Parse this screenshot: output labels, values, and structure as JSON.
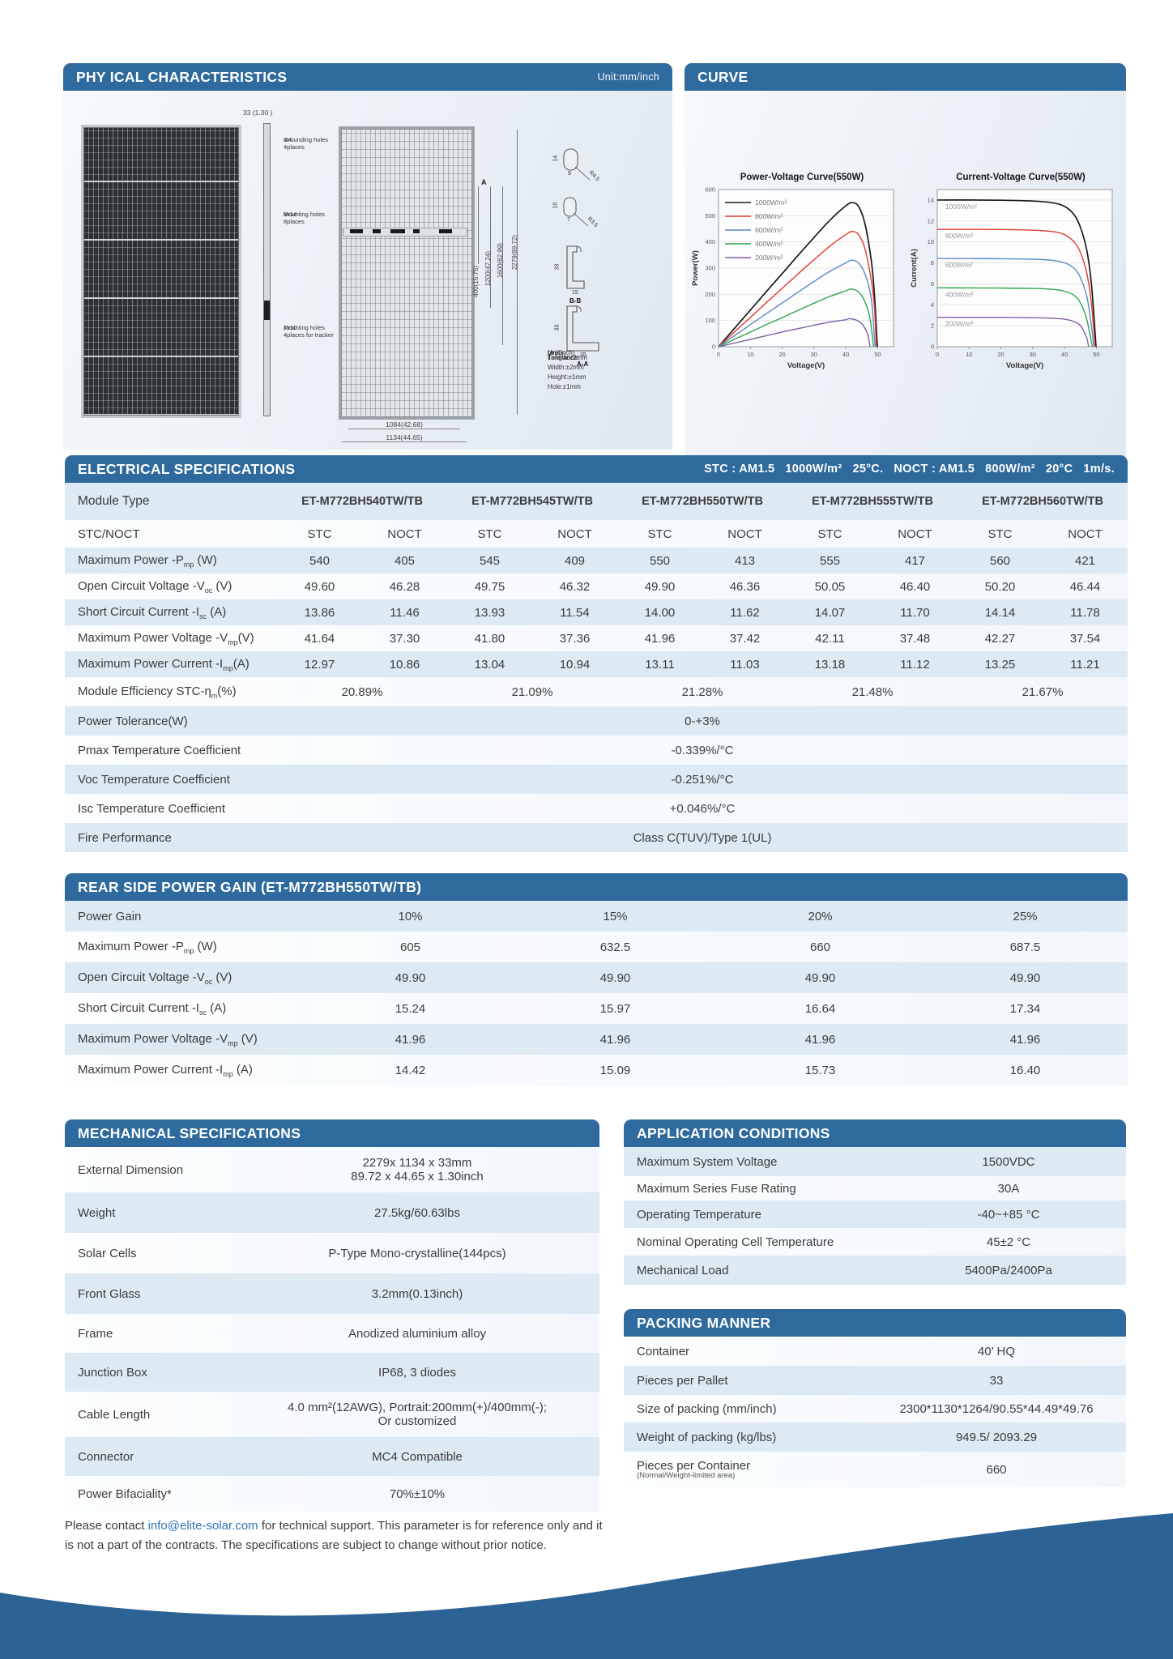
{
  "physical": {
    "title": "PHY ICAL CHARACTERISTICS",
    "unit_badge": "Unit:mm/inch",
    "dim_thickness": "33 (1.30 )",
    "grounding_l1": "Φ4",
    "grounding_l2": "Grounding holes",
    "grounding_l3": "4places",
    "mounting_l1": "9x14",
    "mounting_l2": "Mounting holes",
    "mounting_l3": "8places",
    "tracker_l1": "7x10",
    "tracker_l2": "Mounting holes",
    "tracker_l3": "4places for tracker",
    "dims_vertical": [
      "400(15.75)",
      "1200(47.24)",
      "1600(62.99)",
      "2279(89.72)"
    ],
    "a_mark": "A",
    "dim_width_inner": "1084(42.68)",
    "dim_width_outer": "1134(44.65)",
    "cs1_h": "14",
    "cs1_w": "9",
    "cs1_r": "R4.5",
    "cs2_h": "10",
    "cs2_w": "7",
    "cs2_r": "R3.5",
    "cs3_h": "33",
    "cs3_w": "15",
    "cs3_name": "B-B",
    "cs4_h": "33",
    "cs4_w": "35",
    "cs4_name": "A-A",
    "units_label": "Units:",
    "units_value": "mm(inch)",
    "tolerance_title": "Tolerance:",
    "tolerances": [
      "Length:±2mm",
      "Width:±2mm",
      "Height:±1mm",
      "Hole:±1mm"
    ]
  },
  "curve": {
    "title": "CURVE"
  },
  "chart_data": [
    {
      "type": "line",
      "title": "Power-Voltage Curve(550W)",
      "xlabel": "Voltage(V)",
      "ylabel": "Power(W)",
      "xlim": [
        0,
        55
      ],
      "ylim": [
        0,
        600
      ],
      "xticks": [
        0,
        10,
        20,
        30,
        40,
        50
      ],
      "yticks": [
        0,
        100,
        200,
        300,
        400,
        500,
        600
      ],
      "grid": true,
      "legend_position": "top-left",
      "series": [
        {
          "name": "1000W/m²",
          "color": "#1a1a1a",
          "points": [
            [
              0,
              0
            ],
            [
              5,
              70
            ],
            [
              10,
              140
            ],
            [
              15,
              210
            ],
            [
              20,
              279
            ],
            [
              25,
              349
            ],
            [
              30,
              417
            ],
            [
              35,
              483
            ],
            [
              40,
              538
            ],
            [
              42,
              550
            ],
            [
              44,
              536
            ],
            [
              46,
              470
            ],
            [
              48,
              330
            ],
            [
              49,
              200
            ],
            [
              49.9,
              0
            ]
          ]
        },
        {
          "name": "800W/m²",
          "color": "#e23b2e",
          "points": [
            [
              0,
              0
            ],
            [
              5,
              56
            ],
            [
              10,
              112
            ],
            [
              15,
              168
            ],
            [
              20,
              223
            ],
            [
              25,
              278
            ],
            [
              30,
              332
            ],
            [
              35,
              384
            ],
            [
              40,
              428
            ],
            [
              42,
              440
            ],
            [
              44,
              428
            ],
            [
              46,
              375
            ],
            [
              48,
              255
            ],
            [
              49,
              150
            ],
            [
              49.6,
              0
            ]
          ]
        },
        {
          "name": "600W/m²",
          "color": "#5b8ac5",
          "points": [
            [
              0,
              0
            ],
            [
              5,
              42
            ],
            [
              10,
              84
            ],
            [
              15,
              126
            ],
            [
              20,
              167
            ],
            [
              25,
              208
            ],
            [
              30,
              249
            ],
            [
              35,
              288
            ],
            [
              40,
              320
            ],
            [
              41.8,
              330
            ],
            [
              44,
              320
            ],
            [
              46,
              278
            ],
            [
              48,
              185
            ],
            [
              49.2,
              0
            ]
          ]
        },
        {
          "name": "400W/m²",
          "color": "#2ea44f",
          "points": [
            [
              0,
              0
            ],
            [
              5,
              28
            ],
            [
              10,
              56
            ],
            [
              15,
              84
            ],
            [
              20,
              111
            ],
            [
              25,
              139
            ],
            [
              30,
              166
            ],
            [
              35,
              192
            ],
            [
              40,
              213
            ],
            [
              41.5,
              220
            ],
            [
              43.5,
              213
            ],
            [
              45.5,
              185
            ],
            [
              47.5,
              115
            ],
            [
              48.7,
              0
            ]
          ]
        },
        {
          "name": "200W/m²",
          "color": "#7e5fa6",
          "points": [
            [
              0,
              0
            ],
            [
              5,
              14
            ],
            [
              10,
              28
            ],
            [
              15,
              42
            ],
            [
              20,
              56
            ],
            [
              25,
              69
            ],
            [
              30,
              82
            ],
            [
              35,
              94
            ],
            [
              40,
              103
            ],
            [
              41,
              107
            ],
            [
              43,
              103
            ],
            [
              45,
              88
            ],
            [
              46.8,
              50
            ],
            [
              47.6,
              0
            ]
          ]
        }
      ]
    },
    {
      "type": "line",
      "title": "Current-Voltage Curve(550W)",
      "xlabel": "Voltage(V)",
      "ylabel": "Current(A)",
      "xlim": [
        0,
        55
      ],
      "ylim": [
        0,
        15
      ],
      "xticks": [
        0,
        10,
        20,
        30,
        40,
        50
      ],
      "yticks": [
        0,
        2,
        4,
        6,
        8,
        10,
        12,
        14
      ],
      "grid": true,
      "legend_position": "inline",
      "series": [
        {
          "name": "1000W/m²",
          "color": "#1a1a1a",
          "points": [
            [
              0,
              14
            ],
            [
              10,
              14
            ],
            [
              20,
              13.98
            ],
            [
              30,
              13.9
            ],
            [
              36,
              13.75
            ],
            [
              40,
              13.4
            ],
            [
              43,
              12.6
            ],
            [
              45,
              11.4
            ],
            [
              47,
              9.2
            ],
            [
              48.5,
              5.8
            ],
            [
              49.9,
              0
            ]
          ]
        },
        {
          "name": "800W/m²",
          "color": "#e23b2e",
          "points": [
            [
              0,
              11.21
            ],
            [
              10,
              11.2
            ],
            [
              20,
              11.19
            ],
            [
              30,
              11.12
            ],
            [
              36,
              11.0
            ],
            [
              40,
              10.7
            ],
            [
              43,
              10.0
            ],
            [
              45,
              9.0
            ],
            [
              47,
              7.0
            ],
            [
              48.5,
              4.0
            ],
            [
              49.6,
              0
            ]
          ]
        },
        {
          "name": "600W/m²",
          "color": "#5b8ac5",
          "points": [
            [
              0,
              8.42
            ],
            [
              10,
              8.41
            ],
            [
              20,
              8.4
            ],
            [
              30,
              8.35
            ],
            [
              36,
              8.25
            ],
            [
              40,
              8.0
            ],
            [
              43,
              7.5
            ],
            [
              45,
              6.6
            ],
            [
              47,
              4.8
            ],
            [
              48.3,
              2.4
            ],
            [
              49.2,
              0
            ]
          ]
        },
        {
          "name": "400W/m²",
          "color": "#2ea44f",
          "points": [
            [
              0,
              5.62
            ],
            [
              10,
              5.61
            ],
            [
              20,
              5.6
            ],
            [
              30,
              5.56
            ],
            [
              36,
              5.48
            ],
            [
              40,
              5.3
            ],
            [
              43,
              4.9
            ],
            [
              45,
              4.2
            ],
            [
              47,
              2.6
            ],
            [
              48.7,
              0
            ]
          ]
        },
        {
          "name": "200W/m²",
          "color": "#7e5fa6",
          "points": [
            [
              0,
              2.81
            ],
            [
              10,
              2.8
            ],
            [
              20,
              2.8
            ],
            [
              30,
              2.77
            ],
            [
              36,
              2.72
            ],
            [
              40,
              2.62
            ],
            [
              43,
              2.4
            ],
            [
              45,
              2.0
            ],
            [
              46.8,
              1.0
            ],
            [
              47.6,
              0
            ]
          ]
        }
      ]
    }
  ],
  "electrical": {
    "title": "ELECTRICAL SPECIFICATIONS",
    "conditions": "STC : AM1.5   1000W/m²   25°C.   NOCT : AM1.5   800W/m²   20°C   1m/s.",
    "module_type_label": "Module Type",
    "module_types": [
      "ET-M772BH540TW/TB",
      "ET-M772BH545TW/TB",
      "ET-M772BH550TW/TB",
      "ET-M772BH555TW/TB",
      "ET-M772BH560TW/TB"
    ],
    "stc_noct_label": "STC/NOCT",
    "col_pair": [
      "STC",
      "NOCT"
    ],
    "rows": [
      {
        "pre": "Maximum Power -P",
        "sub": "mp",
        "post": " (W)",
        "values": [
          "540",
          "405",
          "545",
          "409",
          "550",
          "413",
          "555",
          "417",
          "560",
          "421"
        ]
      },
      {
        "pre": "Open Circuit Voltage -V",
        "sub": "oc",
        "post": " (V)",
        "values": [
          "49.60",
          "46.28",
          "49.75",
          "46.32",
          "49.90",
          "46.36",
          "50.05",
          "46.40",
          "50.20",
          "46.44"
        ]
      },
      {
        "pre": "Short Circuit Current -I",
        "sub": "sc",
        "post": " (A)",
        "values": [
          "13.86",
          "11.46",
          "13.93",
          "11.54",
          "14.00",
          "11.62",
          "14.07",
          "11.70",
          "14.14",
          "11.78"
        ]
      },
      {
        "pre": "Maximum Power Voltage -V",
        "sub": "mp",
        "post": "(V)",
        "values": [
          "41.64",
          "37.30",
          "41.80",
          "37.36",
          "41.96",
          "37.42",
          "42.11",
          "37.48",
          "42.27",
          "37.54"
        ]
      },
      {
        "pre": "Maximum Power Current -I",
        "sub": "mp",
        "post": "(A)",
        "values": [
          "12.97",
          "10.86",
          "13.04",
          "10.94",
          "13.11",
          "11.03",
          "13.18",
          "11.12",
          "13.25",
          "11.21"
        ]
      }
    ],
    "efficiency": {
      "pre": "Module Efficiency STC-η",
      "sub": "m",
      "post": "(%)",
      "values": [
        "20.89%",
        "21.09%",
        "21.28%",
        "21.48%",
        "21.67%"
      ]
    },
    "merged_rows": [
      {
        "label": "Power Tolerance(W)",
        "value": "0-+3%"
      },
      {
        "label": "Pmax Temperature Coefficient",
        "value": "-0.339%/°C"
      },
      {
        "label": "Voc Temperature Coefficient",
        "value": "-0.251%/°C"
      },
      {
        "label": "Isc Temperature Coefficient",
        "value": "+0.046%/°C"
      },
      {
        "label": "Fire Performance",
        "value": "Class C(TUV)/Type 1(UL)"
      }
    ]
  },
  "rear": {
    "title": "REAR SIDE POWER GAIN (ET-M772BH550TW/TB)",
    "rows": [
      {
        "pre": "Power Gain",
        "sub": "",
        "post": "",
        "values": [
          "10%",
          "15%",
          "20%",
          "25%"
        ]
      },
      {
        "pre": "Maximum Power -P",
        "sub": "mp",
        "post": " (W)",
        "values": [
          "605",
          "632.5",
          "660",
          "687.5"
        ]
      },
      {
        "pre": "Open Circuit Voltage -V",
        "sub": "oc",
        "post": " (V)",
        "values": [
          "49.90",
          "49.90",
          "49.90",
          "49.90"
        ]
      },
      {
        "pre": "Short Circuit Current -I",
        "sub": "sc",
        "post": " (A)",
        "values": [
          "15.24",
          "15.97",
          "16.64",
          "17.34"
        ]
      },
      {
        "pre": "Maximum Power Voltage -V",
        "sub": "mp",
        "post": " (V)",
        "values": [
          "41.96",
          "41.96",
          "41.96",
          "41.96"
        ]
      },
      {
        "pre": "Maximum Power Current -I",
        "sub": "mp",
        "post": " (A)",
        "values": [
          "14.42",
          "15.09",
          "15.73",
          "16.40"
        ]
      }
    ]
  },
  "mechanical": {
    "title": "MECHANICAL SPECIFICATIONS",
    "rows": [
      {
        "label": "External Dimension",
        "value": "2279x 1134 x 33mm",
        "value2": "89.72 x 44.65 x 1.30inch"
      },
      {
        "label": "Weight",
        "value": "27.5kg/60.63lbs"
      },
      {
        "label": "Solar Cells",
        "value": "P-Type Mono-crystalline(144pcs)"
      },
      {
        "label": "Front Glass",
        "value": "3.2mm(0.13inch)"
      },
      {
        "label": "Frame",
        "value": "Anodized aluminium alloy"
      },
      {
        "label": "Junction Box",
        "value": "IP68, 3 diodes"
      },
      {
        "label": "Cable Length",
        "value": "4.0 mm²(12AWG), Portrait:200mm(+)/400mm(-);",
        "value2": "Or customized"
      },
      {
        "label": "Connector",
        "value": "MC4 Compatible"
      },
      {
        "label": "Power Bifaciality*",
        "value": "70%±10%"
      }
    ]
  },
  "application": {
    "title": "APPLICATION CONDITIONS",
    "rows": [
      {
        "label": "Maximum System Voltage",
        "value": "1500VDC"
      },
      {
        "label": "Maximum Series Fuse Rating",
        "value": "30A"
      },
      {
        "label": "Operating Temperature",
        "value": "-40~+85 °C"
      },
      {
        "label": "Nominal Operating Cell Temperature",
        "value": "45±2 °C"
      },
      {
        "label": "Mechanical Load",
        "value": "5400Pa/2400Pa"
      }
    ]
  },
  "packing": {
    "title": "PACKING MANNER",
    "rows": [
      {
        "label": "Container",
        "value": "40’  HQ"
      },
      {
        "label": "Pieces per Pallet",
        "value": "33"
      },
      {
        "label": "Size of packing (mm/inch)",
        "value": "2300*1130*1264/90.55*44.49*49.76"
      },
      {
        "label": "Weight of packing (kg/lbs)",
        "value": "949.5/ 2093.29"
      },
      {
        "label": "Pieces per Container",
        "sublabel": "(Normal/Weight-limited area)",
        "value": "660"
      }
    ]
  },
  "footer": {
    "text_before": "Please contact ",
    "email": "info@elite-solar.com",
    "text_after": " for technical support. This parameter is for reference only and it is not a part of the contracts. The specifications are subject to change without prior notice."
  },
  "colors": {
    "header_blue": "#2e6a9d",
    "row_shade": "#dde9f3",
    "wave_blue": "#2d6394",
    "link_blue": "#2e74b5"
  }
}
